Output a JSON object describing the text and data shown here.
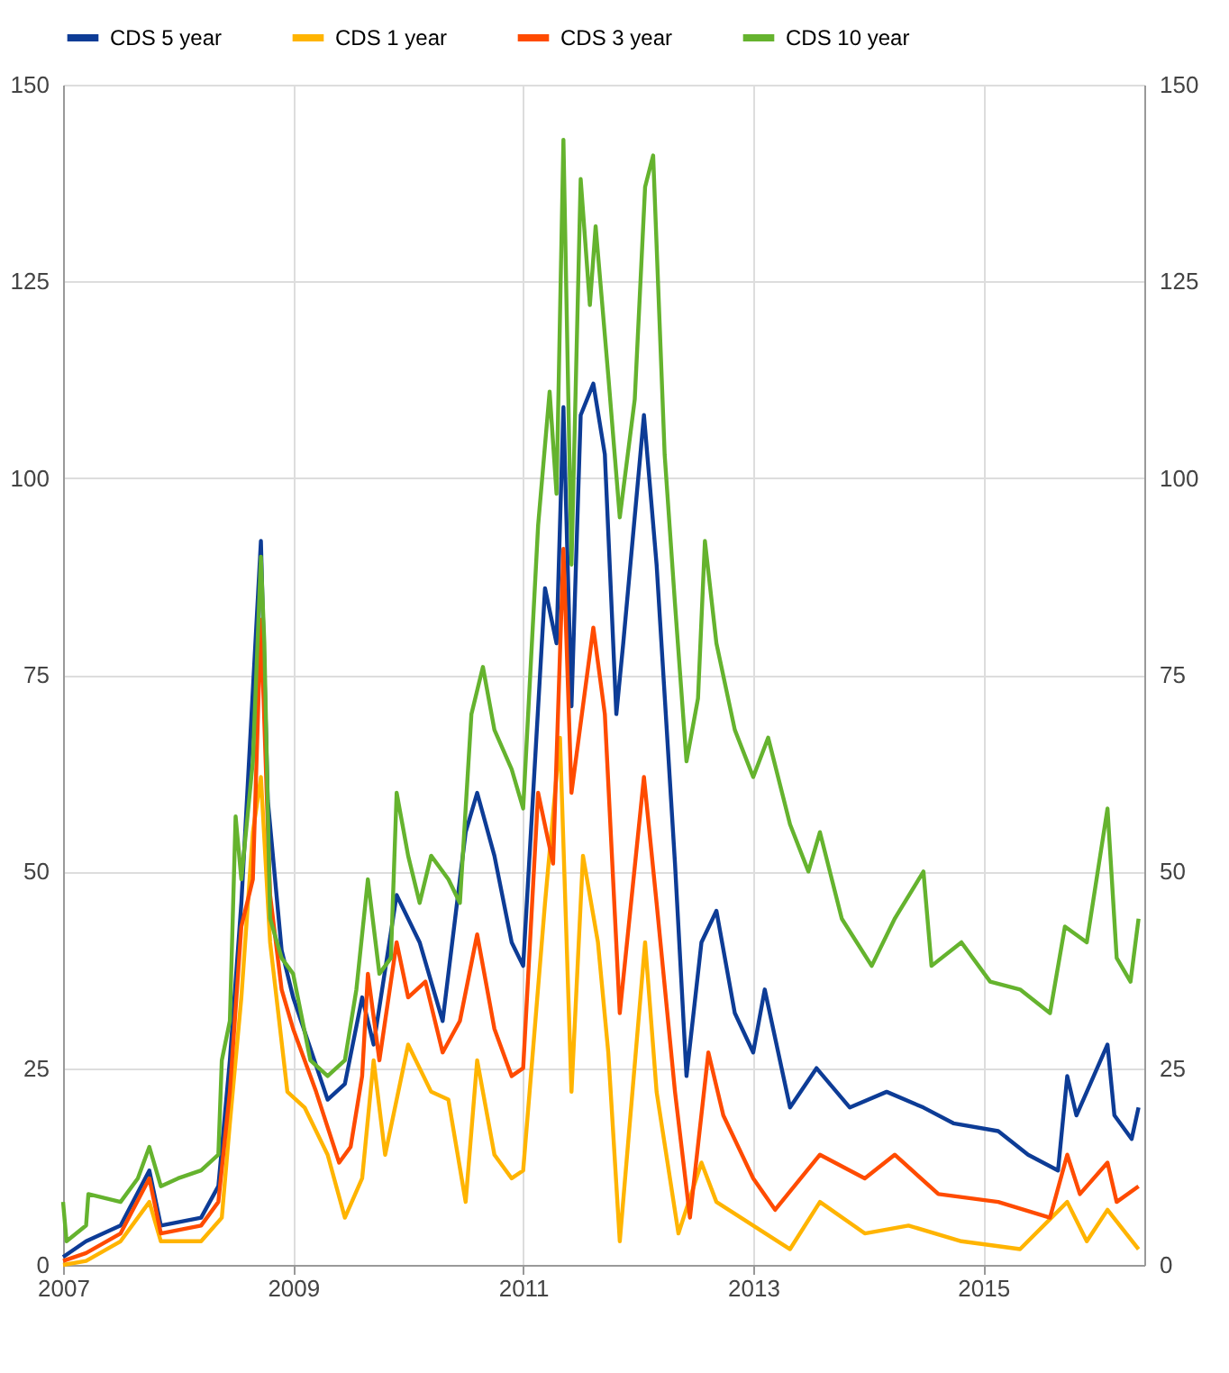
{
  "chart_data": {
    "type": "line",
    "legend": "top",
    "grid": true,
    "xlim": [
      2007,
      2016.4
    ],
    "xticks": [
      2007,
      2009,
      2011,
      2013,
      2015
    ],
    "ylim": [
      0,
      150
    ],
    "yticks": [
      0,
      25,
      50,
      75,
      100,
      125,
      150
    ],
    "y2lim": [
      0,
      150
    ],
    "y2ticks": [
      0,
      25,
      50,
      75,
      100,
      125,
      150
    ],
    "series": [
      {
        "name": "CDS 5 year",
        "color": "#0d3c96",
        "x": [
          2007.0,
          2007.2,
          2007.5,
          2007.75,
          2007.85,
          2008.2,
          2008.35,
          2008.45,
          2008.55,
          2008.72,
          2008.78,
          2008.9,
          2009.0,
          2009.3,
          2009.45,
          2009.6,
          2009.7,
          2009.9,
          2010.1,
          2010.3,
          2010.5,
          2010.6,
          2010.75,
          2010.9,
          2011.0,
          2011.19,
          2011.29,
          2011.35,
          2011.42,
          2011.5,
          2011.61,
          2011.71,
          2011.81,
          2011.87,
          2012.05,
          2012.16,
          2012.32,
          2012.42,
          2012.55,
          2012.68,
          2012.84,
          2013.0,
          2013.1,
          2013.32,
          2013.55,
          2013.84,
          2014.16,
          2014.48,
          2014.74,
          2015.13,
          2015.39,
          2015.65,
          2015.73,
          2015.81,
          2016.08,
          2016.14,
          2016.29,
          2016.35
        ],
        "values": [
          1,
          3,
          5,
          12,
          5,
          6,
          10,
          26,
          46,
          92,
          59,
          40,
          34,
          21,
          23,
          34,
          28,
          47,
          41,
          31,
          55,
          60,
          52,
          41,
          38,
          86,
          79,
          109,
          71,
          108,
          112,
          103,
          70,
          79,
          108,
          89,
          51,
          24,
          41,
          45,
          32,
          27,
          35,
          20,
          25,
          20,
          22,
          20,
          18,
          17,
          14,
          12,
          24,
          19,
          28,
          19,
          16,
          20
        ]
      },
      {
        "name": "CDS 1 year",
        "color": "#ffb400",
        "x": [
          2007.0,
          2007.2,
          2007.5,
          2007.75,
          2007.85,
          2008.2,
          2008.38,
          2008.45,
          2008.55,
          2008.65,
          2008.72,
          2008.8,
          2008.95,
          2009.1,
          2009.3,
          2009.45,
          2009.6,
          2009.7,
          2009.8,
          2010.0,
          2010.2,
          2010.35,
          2010.5,
          2010.6,
          2010.75,
          2010.9,
          2011.0,
          2011.19,
          2011.32,
          2011.42,
          2011.52,
          2011.65,
          2011.74,
          2011.84,
          2012.06,
          2012.16,
          2012.35,
          2012.55,
          2012.68,
          2013.0,
          2013.32,
          2013.58,
          2013.97,
          2014.35,
          2014.81,
          2015.32,
          2015.73,
          2015.9,
          2016.08,
          2016.35
        ],
        "values": [
          0,
          0.5,
          3,
          8,
          3,
          3,
          6,
          18,
          34,
          55,
          62,
          41,
          22,
          20,
          14,
          6,
          11,
          26,
          14,
          28,
          22,
          21,
          8,
          26,
          14,
          11,
          12,
          46,
          67,
          22,
          52,
          41,
          27,
          3,
          41,
          22,
          4,
          13,
          8,
          5,
          2,
          8,
          4,
          5,
          3,
          2,
          8,
          3,
          7,
          2
        ]
      },
      {
        "name": "CDS 3 year",
        "color": "#ff4b00",
        "x": [
          2007.0,
          2007.2,
          2007.5,
          2007.75,
          2007.85,
          2008.2,
          2008.35,
          2008.45,
          2008.55,
          2008.65,
          2008.72,
          2008.8,
          2008.9,
          2009.0,
          2009.2,
          2009.4,
          2009.5,
          2009.6,
          2009.65,
          2009.75,
          2009.9,
          2010.0,
          2010.15,
          2010.3,
          2010.45,
          2010.6,
          2010.75,
          2010.9,
          2011.0,
          2011.13,
          2011.26,
          2011.35,
          2011.42,
          2011.61,
          2011.71,
          2011.84,
          2012.05,
          2012.16,
          2012.32,
          2012.45,
          2012.61,
          2012.74,
          2013.0,
          2013.19,
          2013.58,
          2013.97,
          2014.23,
          2014.61,
          2015.13,
          2015.58,
          2015.73,
          2015.84,
          2016.08,
          2016.16,
          2016.35
        ],
        "values": [
          0.5,
          1.5,
          4,
          11,
          4,
          5,
          8,
          22,
          43,
          49,
          82,
          47,
          35,
          30,
          22,
          13,
          15,
          24,
          37,
          26,
          41,
          34,
          36,
          27,
          31,
          42,
          30,
          24,
          25,
          60,
          51,
          91,
          60,
          81,
          70,
          32,
          62,
          46,
          22,
          6,
          27,
          19,
          11,
          7,
          14,
          11,
          14,
          9,
          8,
          6,
          14,
          9,
          13,
          8,
          10
        ]
      },
      {
        "name": "CDS 10 year",
        "color": "#65b32e",
        "x": [
          2007.0,
          2007.03,
          2007.2,
          2007.22,
          2007.5,
          2007.65,
          2007.75,
          2007.85,
          2008.0,
          2008.2,
          2008.35,
          2008.38,
          2008.45,
          2008.5,
          2008.55,
          2008.65,
          2008.72,
          2008.75,
          2008.8,
          2008.9,
          2009.0,
          2009.15,
          2009.3,
          2009.45,
          2009.55,
          2009.65,
          2009.75,
          2009.85,
          2009.9,
          2010.0,
          2010.1,
          2010.2,
          2010.35,
          2010.45,
          2010.55,
          2010.65,
          2010.75,
          2010.9,
          2011.0,
          2011.13,
          2011.23,
          2011.29,
          2011.35,
          2011.42,
          2011.5,
          2011.58,
          2011.63,
          2011.74,
          2011.84,
          2011.97,
          2012.06,
          2012.13,
          2012.23,
          2012.32,
          2012.42,
          2012.52,
          2012.58,
          2012.68,
          2012.84,
          2013.0,
          2013.13,
          2013.32,
          2013.48,
          2013.58,
          2013.77,
          2014.03,
          2014.23,
          2014.48,
          2014.55,
          2014.81,
          2015.06,
          2015.32,
          2015.58,
          2015.71,
          2015.9,
          2016.08,
          2016.16,
          2016.28,
          2016.35
        ],
        "values": [
          8,
          3,
          5,
          9,
          8,
          11,
          15,
          10,
          11,
          12,
          14,
          26,
          31,
          57,
          49,
          64,
          90,
          79,
          44,
          39,
          37,
          26,
          24,
          26,
          35,
          49,
          37,
          39,
          60,
          52,
          46,
          52,
          49,
          46,
          70,
          76,
          68,
          63,
          58,
          94,
          111,
          98,
          143,
          89,
          138,
          122,
          132,
          113,
          95,
          110,
          137,
          141,
          103,
          84,
          64,
          72,
          92,
          79,
          68,
          62,
          67,
          56,
          50,
          55,
          44,
          38,
          44,
          50,
          38,
          41,
          36,
          35,
          32,
          43,
          41,
          58,
          39,
          36,
          44
        ]
      }
    ]
  }
}
